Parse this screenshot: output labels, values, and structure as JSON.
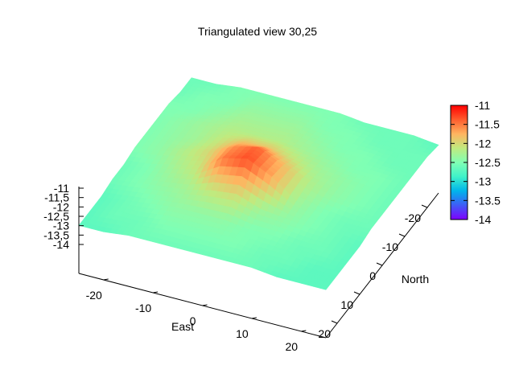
{
  "chart_data": {
    "type": "heatmap",
    "title": "Triangulated view 30,25",
    "xlabel": "East",
    "ylabel": "North",
    "zlabel": "",
    "view": {
      "rot_x": 30,
      "rot_z": 25
    },
    "xlim": [
      -25,
      25
    ],
    "ylim": [
      -25,
      25
    ],
    "zlim": [
      -14,
      -11
    ],
    "x_ticks": [
      -20,
      -10,
      0,
      10,
      20
    ],
    "y_ticks": [
      -20,
      -10,
      0,
      10,
      20
    ],
    "z_ticks": [
      -11,
      -11.5,
      -12,
      -12.5,
      -13,
      -13.5,
      -14
    ],
    "x_tick_labels": [
      "-20",
      "-10",
      "0",
      "10",
      "20"
    ],
    "y_tick_labels": [
      "-20",
      "-10",
      "0",
      "10",
      "20"
    ],
    "z_tick_labels": [
      "-11",
      "-11,5",
      "-12",
      "-12,5",
      "-13",
      "-13,5",
      "-14"
    ],
    "colorbar": {
      "range": [
        -14,
        -11
      ],
      "ticks": [
        -11,
        -11.5,
        -12,
        -12.5,
        -13,
        -13.5,
        -14
      ],
      "tick_labels": [
        "-11",
        "-11.5",
        "-12",
        "-12.5",
        "-13",
        "-13.5",
        "-14"
      ],
      "palette": [
        "#7f00ff",
        "#3f5cf6",
        "#00b4eb",
        "#3ff2c9",
        "#80ffb4",
        "#c0ea7f",
        "#ffb460",
        "#ff5c2e",
        "#ff0000"
      ]
    },
    "surface": {
      "x": [
        -25,
        -20,
        -15,
        -10,
        -5,
        0,
        5,
        10,
        15,
        20,
        25
      ],
      "y": [
        -25,
        -20,
        -15,
        -10,
        -5,
        0,
        5,
        10,
        15,
        20,
        25
      ],
      "z": [
        [
          -12.6,
          -12.6,
          -12.5,
          -12.5,
          -12.5,
          -12.5,
          -12.5,
          -12.6,
          -12.6,
          -12.6,
          -12.7
        ],
        [
          -12.6,
          -12.5,
          -12.5,
          -12.4,
          -12.4,
          -12.4,
          -12.5,
          -12.5,
          -12.6,
          -12.6,
          -12.6
        ],
        [
          -12.5,
          -12.5,
          -12.4,
          -12.3,
          -12.3,
          -12.3,
          -12.4,
          -12.5,
          -12.5,
          -12.6,
          -12.6
        ],
        [
          -12.5,
          -12.4,
          -12.3,
          -12.2,
          -12.2,
          -12.2,
          -12.3,
          -12.4,
          -12.5,
          -12.5,
          -12.6
        ],
        [
          -12.5,
          -12.4,
          -12.3,
          -12.1,
          -11.9,
          -11.9,
          -12.1,
          -12.3,
          -12.4,
          -12.5,
          -12.6
        ],
        [
          -12.5,
          -12.4,
          -12.2,
          -12.0,
          -11.6,
          -11.4,
          -11.8,
          -12.2,
          -12.4,
          -12.5,
          -12.6
        ],
        [
          -12.6,
          -12.5,
          -12.3,
          -12.1,
          -11.5,
          -11.3,
          -11.7,
          -12.3,
          -12.5,
          -12.6,
          -12.6
        ],
        [
          -12.6,
          -12.5,
          -12.4,
          -12.3,
          -12.1,
          -12.0,
          -12.3,
          -12.4,
          -12.5,
          -12.6,
          -12.7
        ],
        [
          -12.7,
          -12.6,
          -12.5,
          -12.4,
          -12.4,
          -12.4,
          -12.5,
          -12.5,
          -12.6,
          -12.6,
          -12.7
        ],
        [
          -12.7,
          -12.6,
          -12.6,
          -12.5,
          -12.5,
          -12.5,
          -12.5,
          -12.6,
          -12.6,
          -12.7,
          -12.7
        ],
        [
          -12.7,
          -12.7,
          -12.6,
          -12.6,
          -12.6,
          -12.6,
          -12.6,
          -12.6,
          -12.7,
          -12.7,
          -12.7
        ]
      ]
    }
  }
}
